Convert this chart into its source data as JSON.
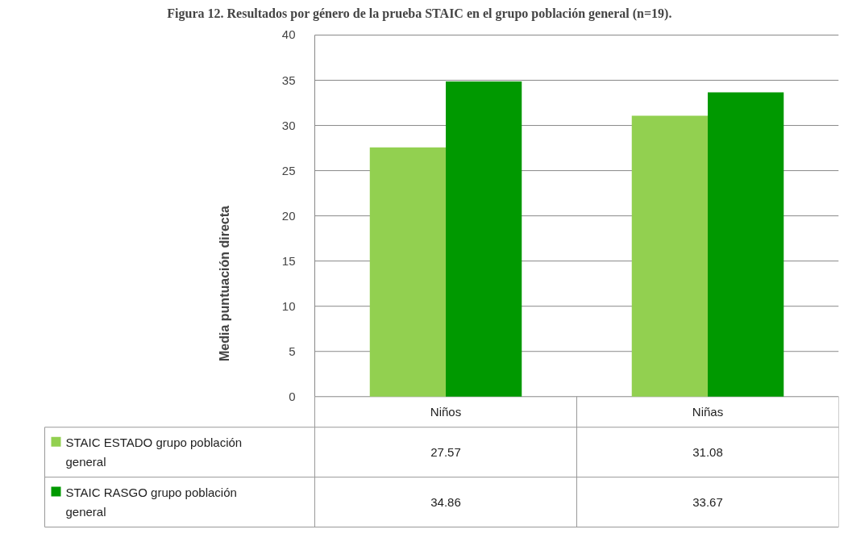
{
  "chart_data": {
    "type": "bar",
    "title": "Figura 12. Resultados por género de la prueba STAIC en el grupo población general (n=19).",
    "ylabel": "Media puntuación directa",
    "categories": [
      "Niños",
      "Niñas"
    ],
    "series": [
      {
        "name": "STAIC ESTADO grupo población general",
        "color": "#92d050",
        "values": [
          27.57,
          31.08
        ]
      },
      {
        "name": "STAIC RASGO grupo población general",
        "color": "#009900",
        "values": [
          34.86,
          33.67
        ]
      }
    ],
    "ylim": [
      0,
      40
    ],
    "yticks": [
      0,
      5,
      10,
      15,
      20,
      25,
      30,
      35,
      40
    ],
    "grid": "y",
    "legend": "bottom",
    "data_labels": true
  }
}
